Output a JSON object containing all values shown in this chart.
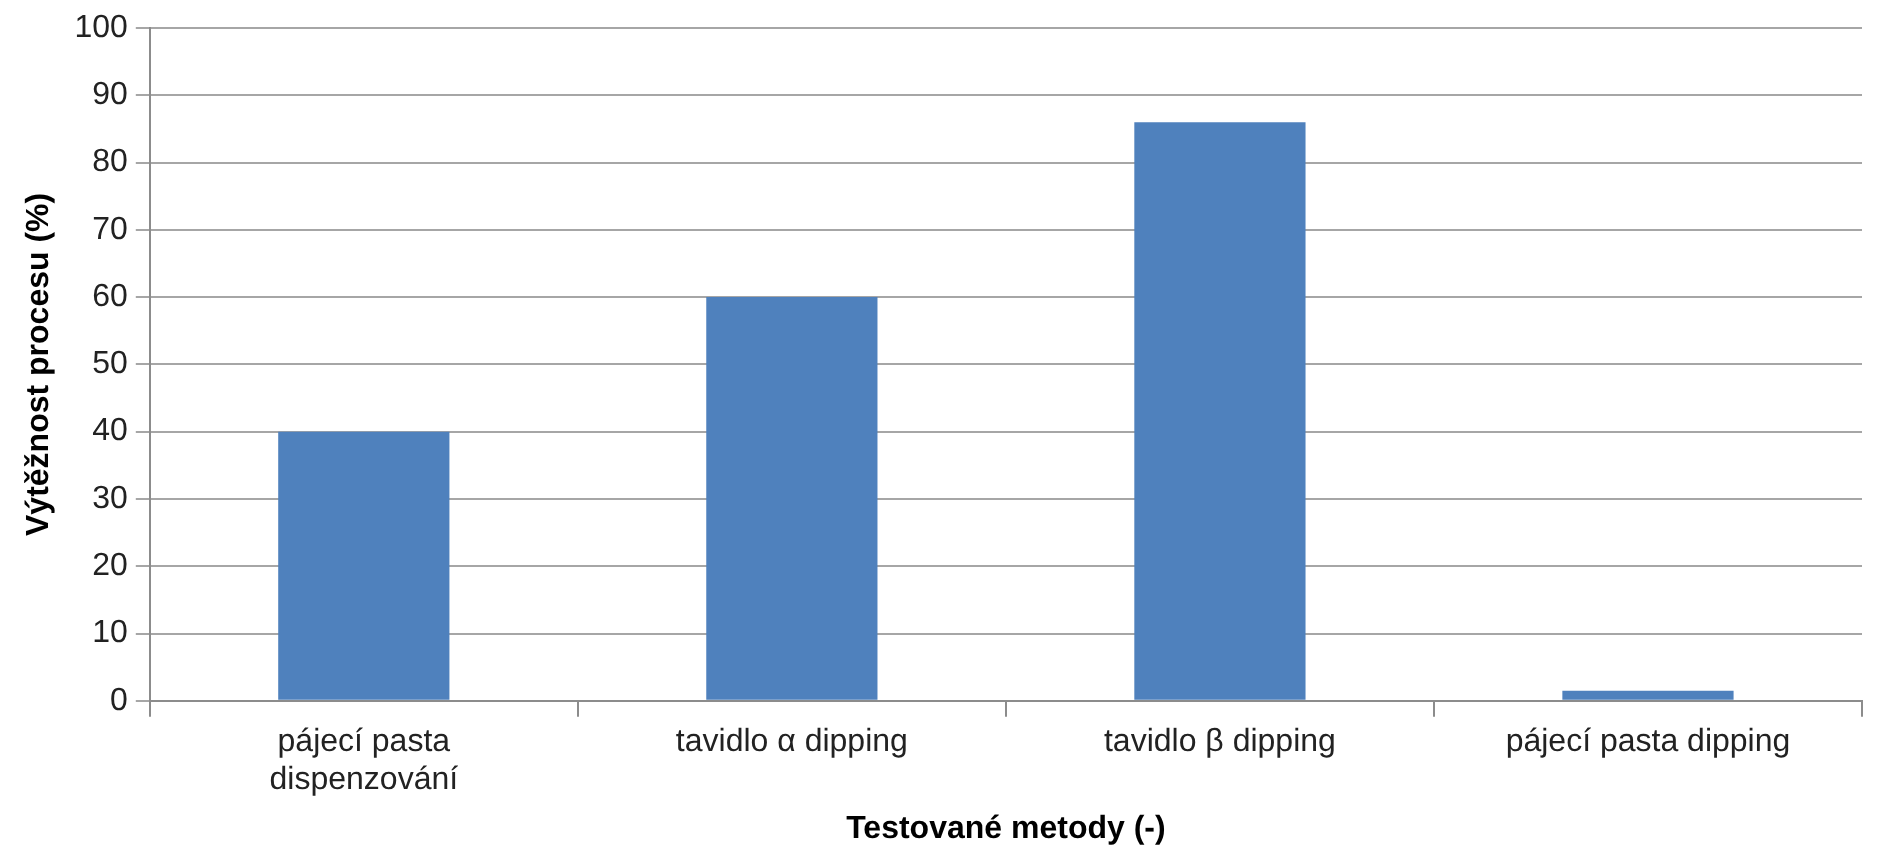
{
  "chart_data": {
    "type": "bar",
    "xlabel": "Testované metody (-)",
    "ylabel": "Výtěžnost procesu (%)",
    "categories": [
      "pájecí pasta dispenzování",
      "tavidlo α dipping",
      "tavidlo β dipping",
      "pájecí pasta dipping"
    ],
    "values": [
      40,
      60,
      86,
      1.5
    ],
    "color": "#4f81bd",
    "ylim": [
      0,
      100
    ],
    "yticks": [
      0,
      10,
      20,
      30,
      40,
      50,
      60,
      70,
      80,
      90,
      100
    ],
    "grid": "y"
  }
}
